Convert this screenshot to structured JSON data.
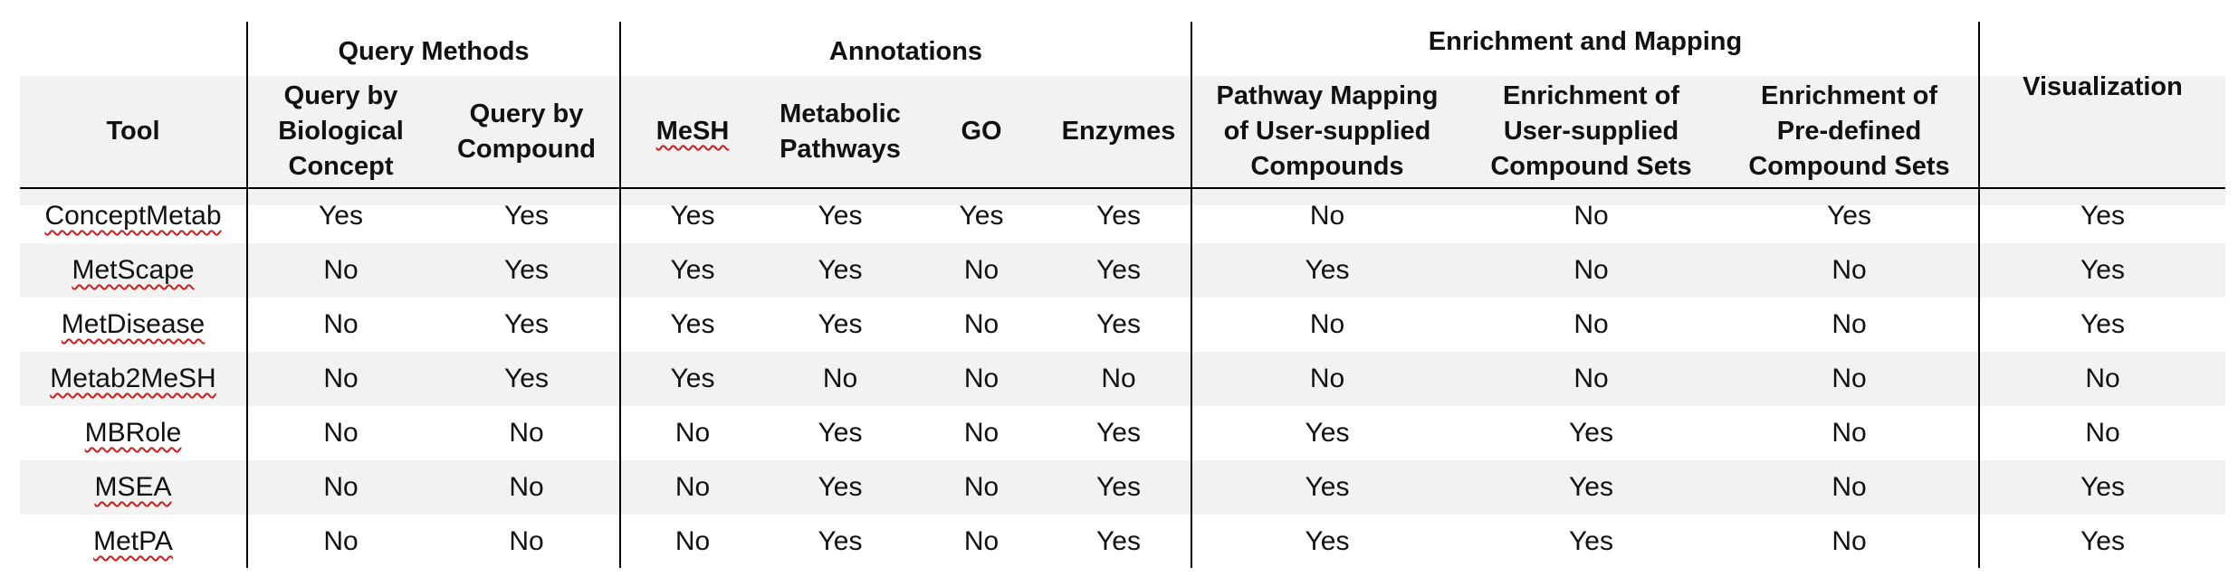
{
  "table": {
    "groups": {
      "query": "Query Methods",
      "annotations": "Annotations",
      "enrichment": "Enrichment and Mapping"
    },
    "headers": {
      "tool": "Tool",
      "by_concept": [
        "Query by",
        "Biological",
        "Concept"
      ],
      "by_compound": [
        "Query by",
        "Compound"
      ],
      "mesh": "MeSH",
      "pathways": [
        "Metabolic",
        "Pathways"
      ],
      "go": "GO",
      "enzymes": "Enzymes",
      "pathway_mapping": [
        "Pathway Mapping",
        "of User-supplied",
        "Compounds"
      ],
      "enrich_user": [
        "Enrichment of",
        "User-supplied",
        "Compound Sets"
      ],
      "enrich_predef": [
        "Enrichment of",
        "Pre-defined",
        "Compound Sets"
      ],
      "visualization": "Visualization"
    },
    "rows": [
      {
        "tool": "ConceptMetab",
        "cells": [
          "Yes",
          "Yes",
          "Yes",
          "Yes",
          "Yes",
          "Yes",
          "No",
          "No",
          "Yes",
          "Yes"
        ]
      },
      {
        "tool": "MetScape",
        "cells": [
          "No",
          "Yes",
          "Yes",
          "Yes",
          "No",
          "Yes",
          "Yes",
          "No",
          "No",
          "Yes"
        ]
      },
      {
        "tool": "MetDisease",
        "cells": [
          "No",
          "Yes",
          "Yes",
          "Yes",
          "No",
          "Yes",
          "No",
          "No",
          "No",
          "Yes"
        ]
      },
      {
        "tool": "Metab2MeSH",
        "cells": [
          "No",
          "Yes",
          "Yes",
          "No",
          "No",
          "No",
          "No",
          "No",
          "No",
          "No"
        ]
      },
      {
        "tool": "MBRole",
        "cells": [
          "No",
          "No",
          "No",
          "Yes",
          "No",
          "Yes",
          "Yes",
          "Yes",
          "No",
          "No"
        ]
      },
      {
        "tool": "MSEA",
        "cells": [
          "No",
          "No",
          "No",
          "Yes",
          "No",
          "Yes",
          "Yes",
          "Yes",
          "No",
          "Yes"
        ]
      },
      {
        "tool": "MetPA",
        "cells": [
          "No",
          "No",
          "No",
          "Yes",
          "No",
          "Yes",
          "Yes",
          "Yes",
          "No",
          "Yes"
        ]
      }
    ]
  }
}
